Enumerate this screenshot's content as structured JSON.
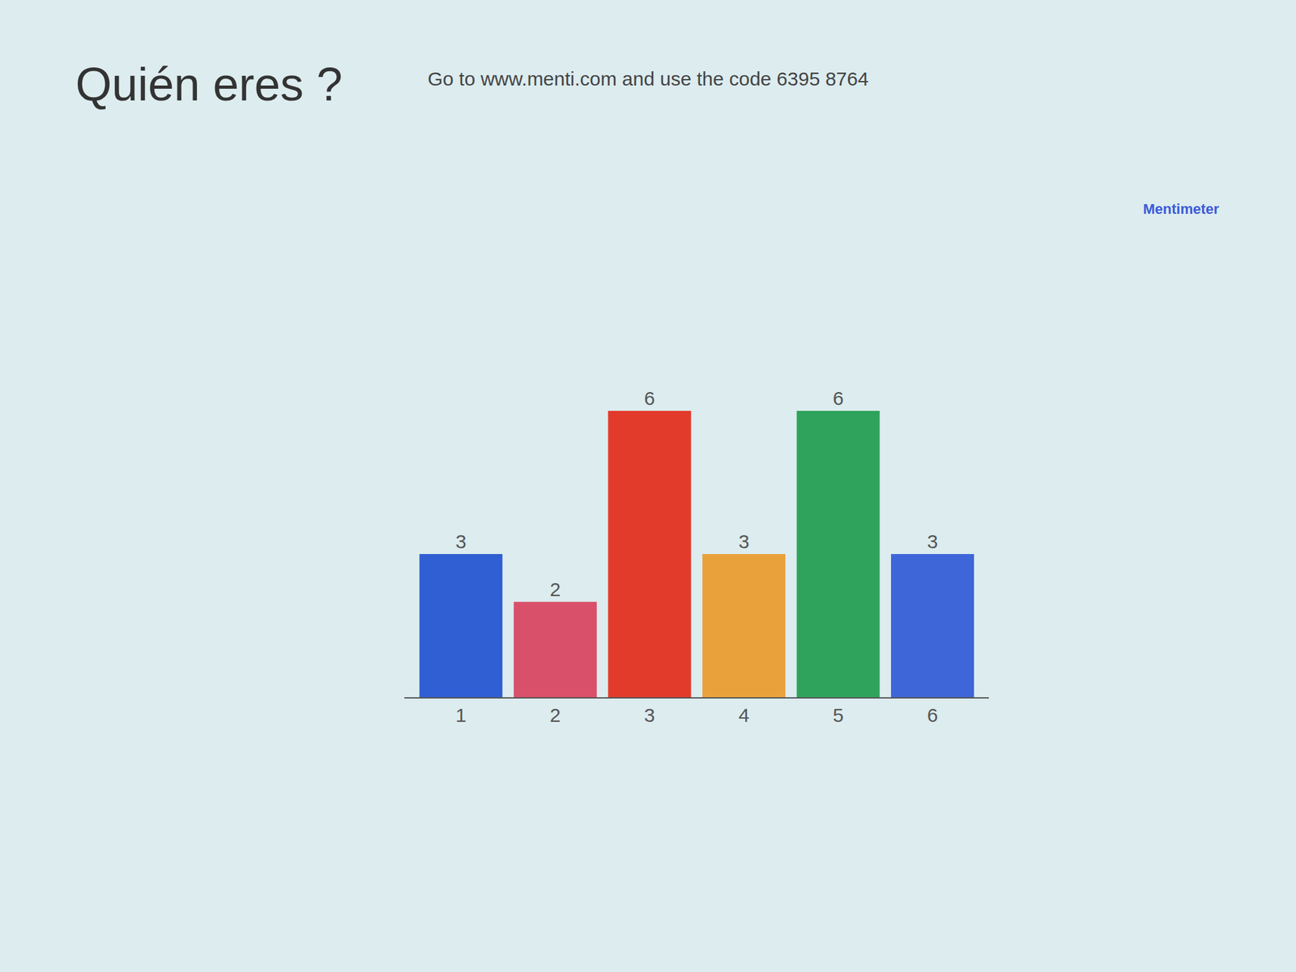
{
  "chart_data": {
    "type": "bar",
    "title": "Quién eres ?",
    "subtitle": "Go to www.menti.com and use the code 6395 8764",
    "annotations": [
      "Mentimeter"
    ],
    "categories": [
      "1",
      "2",
      "3",
      "4",
      "5",
      "6"
    ],
    "values": [
      3,
      2,
      6,
      3,
      6,
      3
    ],
    "colors": [
      "#2f5fd2",
      "#d9506a",
      "#e23b2c",
      "#e9a23b",
      "#2fa35c",
      "#3f66d8"
    ],
    "ylim": [
      0,
      6
    ],
    "grid": false,
    "data_labels": true,
    "tick_labels": "x"
  }
}
